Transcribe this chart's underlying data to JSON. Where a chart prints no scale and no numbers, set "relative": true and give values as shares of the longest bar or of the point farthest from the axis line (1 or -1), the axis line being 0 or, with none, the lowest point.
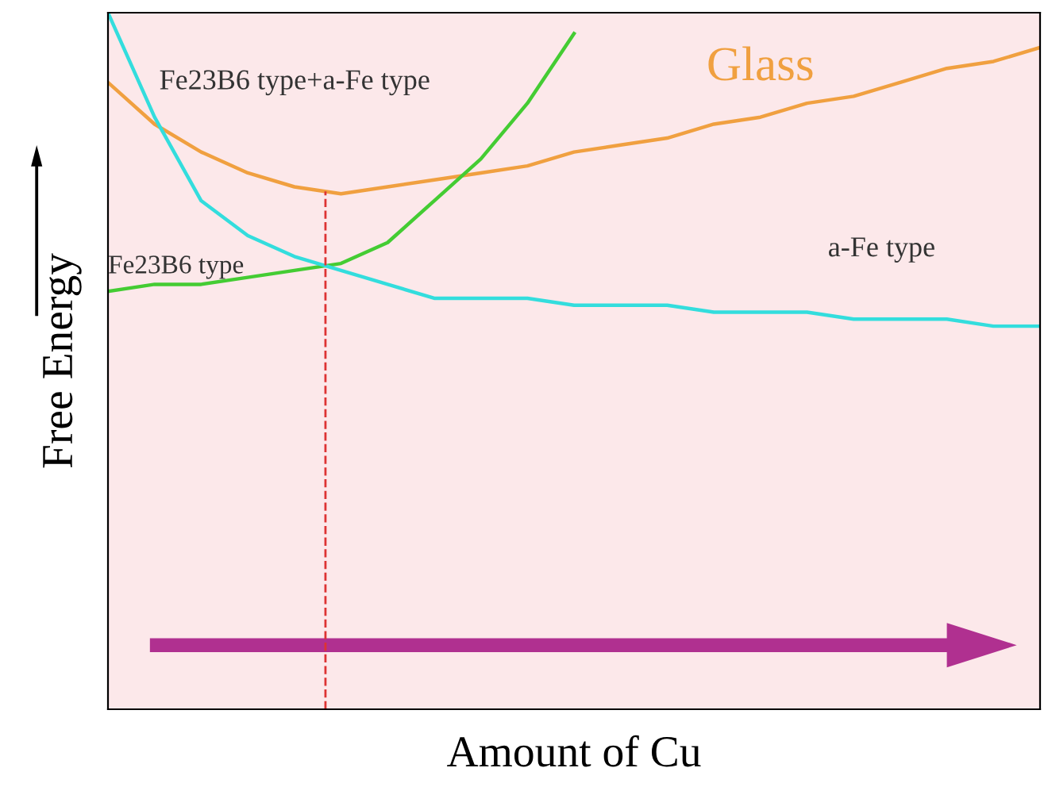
{
  "chart_data": {
    "type": "line",
    "relative": true,
    "xlabel": "Amount of Cu",
    "ylabel": "Free Energy",
    "categories": [
      null,
      null,
      null,
      null,
      null,
      null,
      null,
      null,
      null,
      null,
      null,
      null,
      null,
      null,
      null,
      null,
      null,
      null,
      null,
      null,
      null
    ],
    "series": [
      {
        "name": "Glass",
        "color": "#f0a040",
        "values": [
          0.9,
          0.84,
          0.8,
          0.77,
          0.75,
          0.74,
          0.75,
          0.76,
          0.77,
          0.78,
          0.8,
          0.81,
          0.82,
          0.84,
          0.85,
          0.87,
          0.88,
          0.9,
          0.92,
          0.93,
          0.95
        ]
      },
      {
        "name": "Fe23B6 type",
        "color": "#44cc33",
        "values": [
          0.6,
          0.61,
          0.61,
          0.62,
          0.63,
          0.64,
          0.67,
          0.73,
          0.79,
          0.87,
          0.97,
          null,
          null,
          null,
          null,
          null,
          null,
          null,
          null,
          null,
          null
        ]
      },
      {
        "name": "a-Fe type",
        "color": "#33dddd",
        "values": [
          1.0,
          0.85,
          0.73,
          0.68,
          0.65,
          0.63,
          0.61,
          0.59,
          0.59,
          0.59,
          0.58,
          0.58,
          0.58,
          0.57,
          0.57,
          0.57,
          0.56,
          0.56,
          0.56,
          0.55,
          0.55
        ]
      }
    ],
    "annotations": [
      "Fe23B6 type+a-Fe type"
    ],
    "legend": false
  }
}
